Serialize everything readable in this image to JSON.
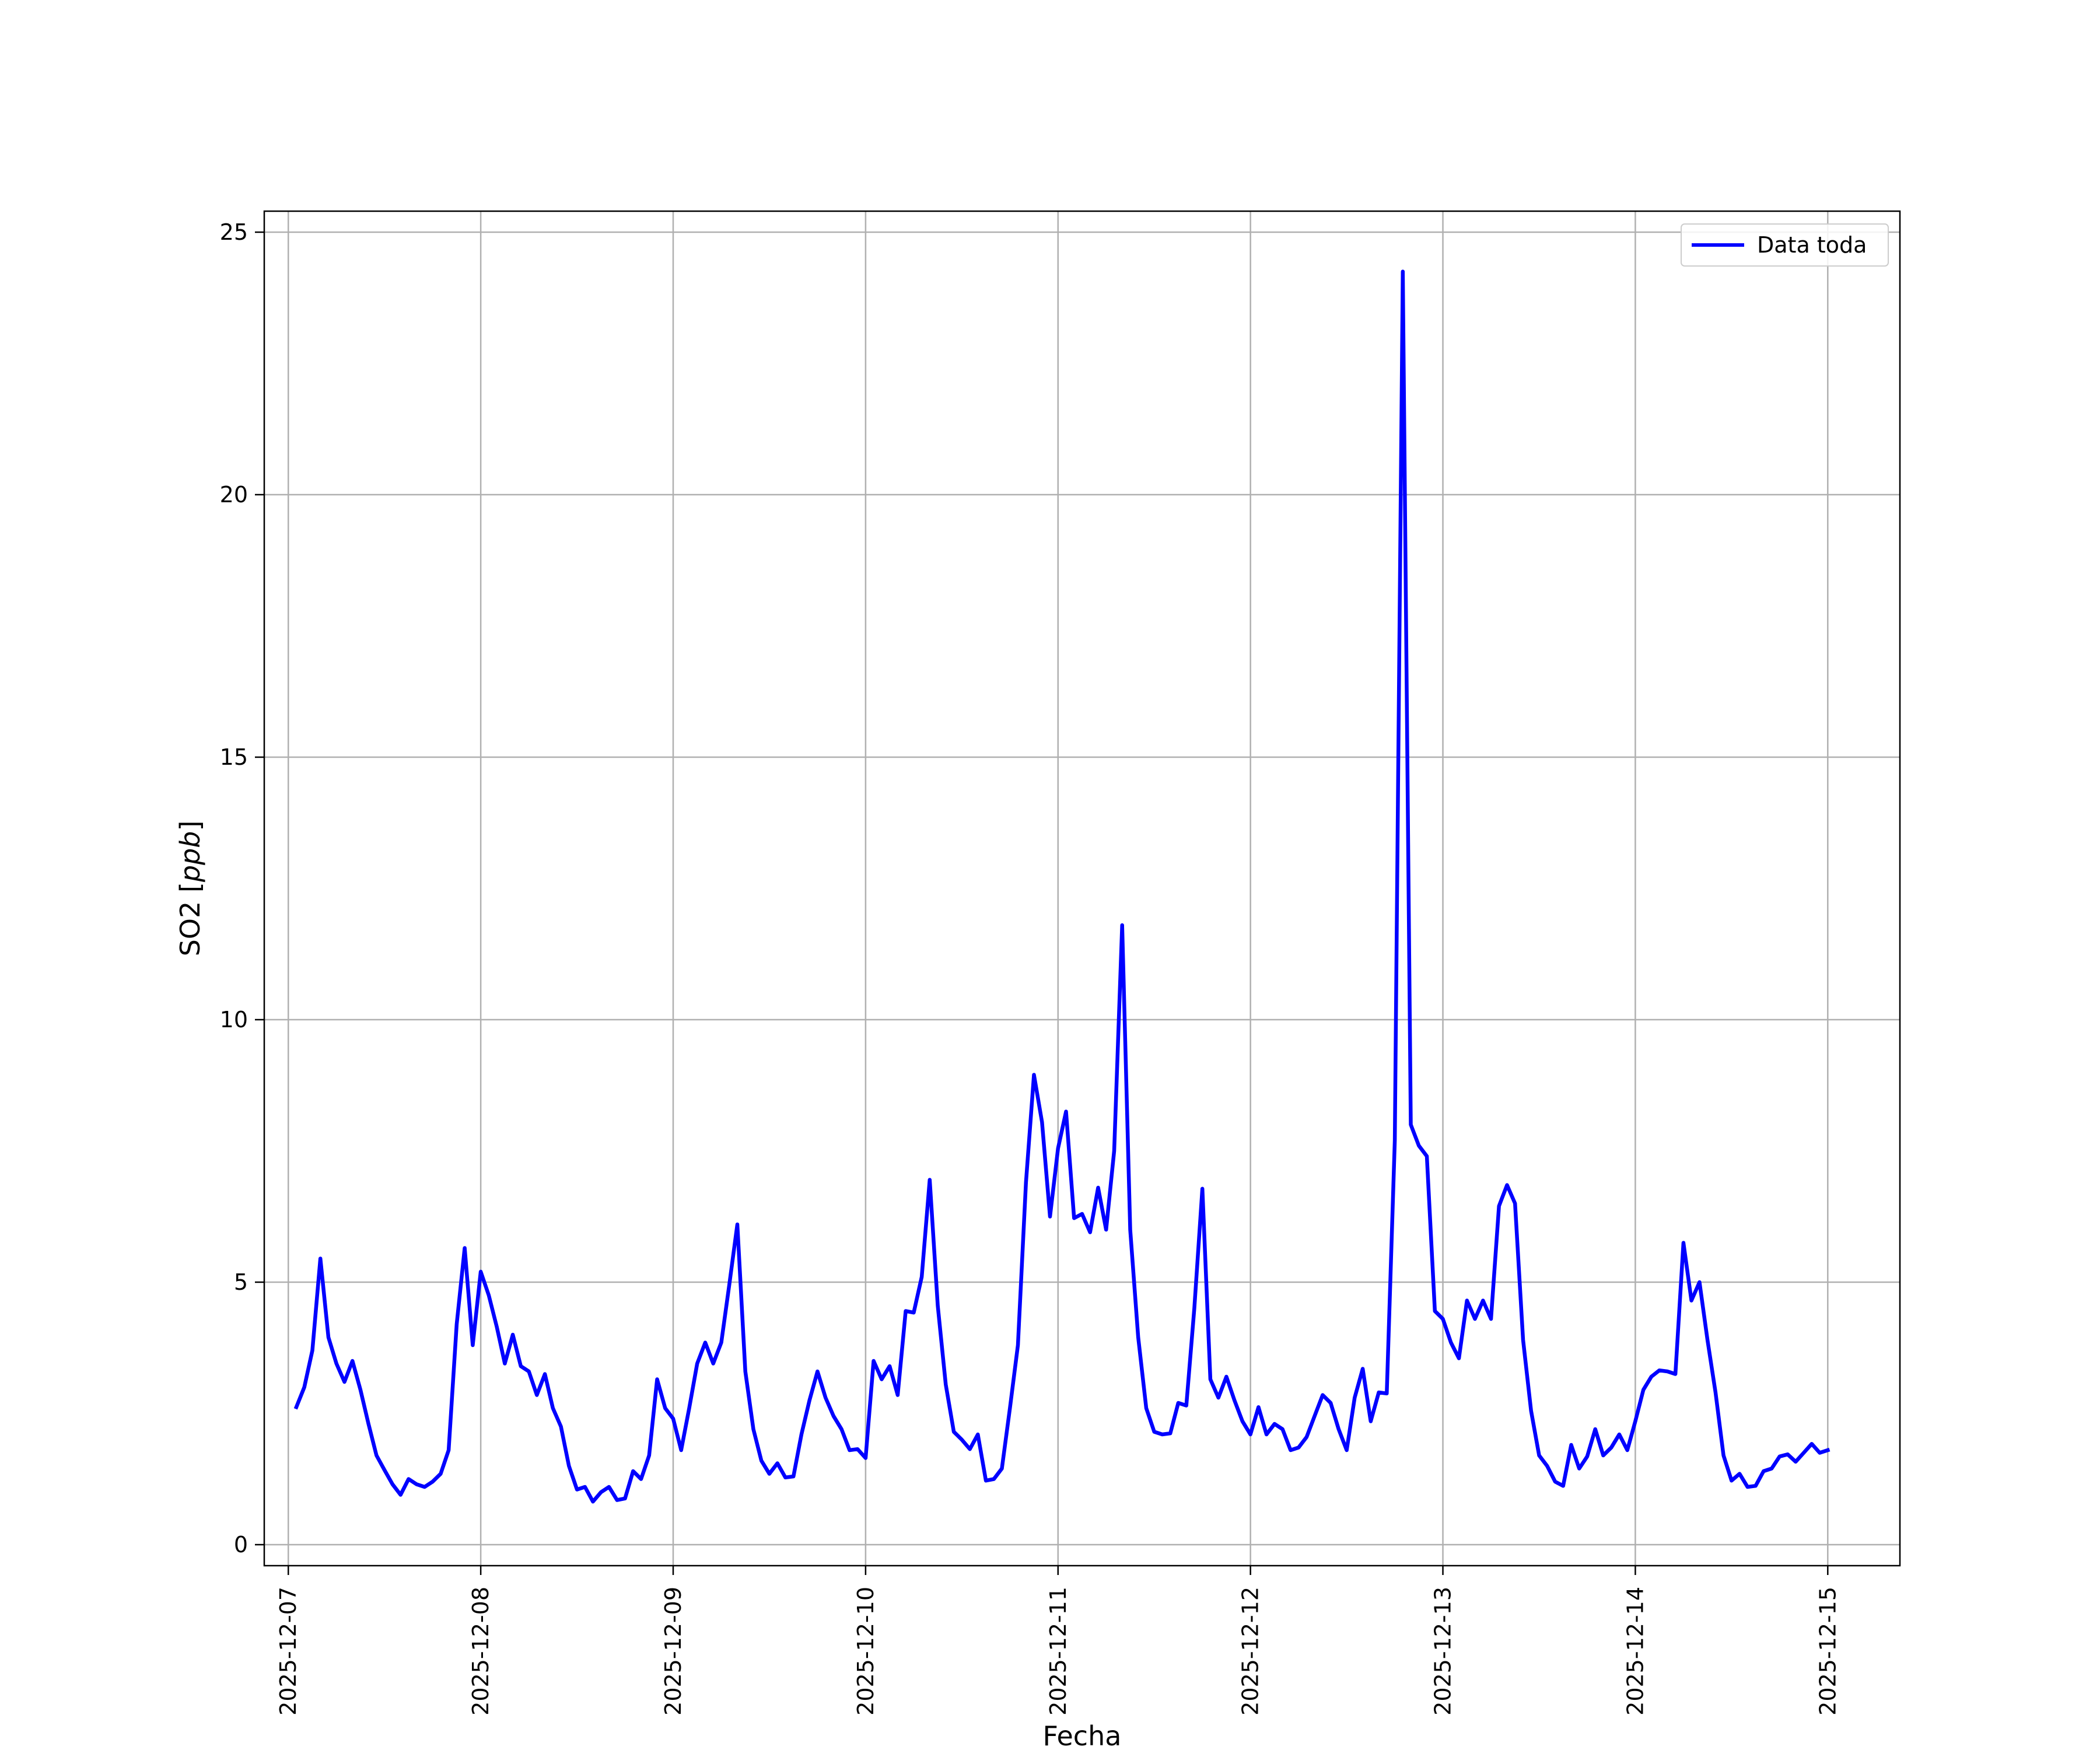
{
  "chart_data": {
    "type": "line",
    "title": "",
    "xlabel": "Fecha",
    "ylabel": "SO2 [ppb]",
    "ylabel_parts": {
      "prefix": "SO2 [",
      "italic": "ppb",
      "suffix": "]"
    },
    "grid": true,
    "legend_position": "top-right",
    "x_type": "date",
    "x_ticks": [
      "2025-12-07",
      "2025-12-08",
      "2025-12-09",
      "2025-12-10",
      "2025-12-11",
      "2025-12-12",
      "2025-12-13",
      "2025-12-14",
      "2025-12-15"
    ],
    "xlim": [
      "2025-12-06 21:00",
      "2025-12-15 09:00"
    ],
    "y_ticks": [
      0,
      5,
      10,
      15,
      20,
      25
    ],
    "ylim": [
      -0.4,
      25.4
    ],
    "series": [
      {
        "name": "Data toda",
        "color": "#0000ff",
        "points": [
          [
            "2025-12-07 01:00",
            2.62
          ],
          [
            "2025-12-07 02:00",
            3.0
          ],
          [
            "2025-12-07 03:00",
            3.7
          ],
          [
            "2025-12-07 04:00",
            5.45
          ],
          [
            "2025-12-07 05:00",
            3.95
          ],
          [
            "2025-12-07 06:00",
            3.45
          ],
          [
            "2025-12-07 07:00",
            3.1
          ],
          [
            "2025-12-07 08:00",
            3.5
          ],
          [
            "2025-12-07 09:00",
            2.95
          ],
          [
            "2025-12-07 10:00",
            2.3
          ],
          [
            "2025-12-07 11:00",
            1.7
          ],
          [
            "2025-12-07 12:00",
            1.42
          ],
          [
            "2025-12-07 13:00",
            1.15
          ],
          [
            "2025-12-07 14:00",
            0.95
          ],
          [
            "2025-12-07 15:00",
            1.25
          ],
          [
            "2025-12-07 16:00",
            1.15
          ],
          [
            "2025-12-07 17:00",
            1.1
          ],
          [
            "2025-12-07 18:00",
            1.2
          ],
          [
            "2025-12-07 19:00",
            1.35
          ],
          [
            "2025-12-07 20:00",
            1.8
          ],
          [
            "2025-12-07 21:00",
            4.2
          ],
          [
            "2025-12-07 22:00",
            5.65
          ],
          [
            "2025-12-07 23:00",
            3.8
          ],
          [
            "2025-12-08 00:00",
            5.2
          ],
          [
            "2025-12-08 01:00",
            4.75
          ],
          [
            "2025-12-08 02:00",
            4.15
          ],
          [
            "2025-12-08 03:00",
            3.45
          ],
          [
            "2025-12-08 04:00",
            4.0
          ],
          [
            "2025-12-08 05:00",
            3.4
          ],
          [
            "2025-12-08 06:00",
            3.3
          ],
          [
            "2025-12-08 07:00",
            2.85
          ],
          [
            "2025-12-08 08:00",
            3.25
          ],
          [
            "2025-12-08 09:00",
            2.6
          ],
          [
            "2025-12-08 10:00",
            2.25
          ],
          [
            "2025-12-08 11:00",
            1.5
          ],
          [
            "2025-12-08 12:00",
            1.05
          ],
          [
            "2025-12-08 13:00",
            1.1
          ],
          [
            "2025-12-08 14:00",
            0.82
          ],
          [
            "2025-12-08 15:00",
            1.0
          ],
          [
            "2025-12-08 16:00",
            1.1
          ],
          [
            "2025-12-08 17:00",
            0.85
          ],
          [
            "2025-12-08 18:00",
            0.88
          ],
          [
            "2025-12-08 19:00",
            1.4
          ],
          [
            "2025-12-08 20:00",
            1.25
          ],
          [
            "2025-12-08 21:00",
            1.7
          ],
          [
            "2025-12-08 22:00",
            3.15
          ],
          [
            "2025-12-08 23:00",
            2.6
          ],
          [
            "2025-12-09 00:00",
            2.4
          ],
          [
            "2025-12-09 01:00",
            1.8
          ],
          [
            "2025-12-09 02:00",
            2.6
          ],
          [
            "2025-12-09 03:00",
            3.45
          ],
          [
            "2025-12-09 04:00",
            3.85
          ],
          [
            "2025-12-09 05:00",
            3.45
          ],
          [
            "2025-12-09 06:00",
            3.85
          ],
          [
            "2025-12-09 07:00",
            4.95
          ],
          [
            "2025-12-09 08:00",
            6.1
          ],
          [
            "2025-12-09 09:00",
            3.3
          ],
          [
            "2025-12-09 10:00",
            2.2
          ],
          [
            "2025-12-09 11:00",
            1.6
          ],
          [
            "2025-12-09 12:00",
            1.35
          ],
          [
            "2025-12-09 13:00",
            1.55
          ],
          [
            "2025-12-09 14:00",
            1.28
          ],
          [
            "2025-12-09 15:00",
            1.3
          ],
          [
            "2025-12-09 16:00",
            2.1
          ],
          [
            "2025-12-09 17:00",
            2.75
          ],
          [
            "2025-12-09 18:00",
            3.3
          ],
          [
            "2025-12-09 19:00",
            2.8
          ],
          [
            "2025-12-09 20:00",
            2.45
          ],
          [
            "2025-12-09 21:00",
            2.2
          ],
          [
            "2025-12-09 22:00",
            1.8
          ],
          [
            "2025-12-09 23:00",
            1.82
          ],
          [
            "2025-12-10 00:00",
            1.65
          ],
          [
            "2025-12-10 01:00",
            3.5
          ],
          [
            "2025-12-10 02:00",
            3.15
          ],
          [
            "2025-12-10 03:00",
            3.4
          ],
          [
            "2025-12-10 04:00",
            2.85
          ],
          [
            "2025-12-10 05:00",
            4.45
          ],
          [
            "2025-12-10 06:00",
            4.42
          ],
          [
            "2025-12-10 07:00",
            5.1
          ],
          [
            "2025-12-10 08:00",
            6.95
          ],
          [
            "2025-12-10 09:00",
            4.55
          ],
          [
            "2025-12-10 10:00",
            3.05
          ],
          [
            "2025-12-10 11:00",
            2.15
          ],
          [
            "2025-12-10 12:00",
            2.0
          ],
          [
            "2025-12-10 13:00",
            1.82
          ],
          [
            "2025-12-10 14:00",
            2.1
          ],
          [
            "2025-12-10 15:00",
            1.22
          ],
          [
            "2025-12-10 16:00",
            1.25
          ],
          [
            "2025-12-10 17:00",
            1.45
          ],
          [
            "2025-12-10 18:00",
            2.6
          ],
          [
            "2025-12-10 19:00",
            3.8
          ],
          [
            "2025-12-10 20:00",
            6.9
          ],
          [
            "2025-12-10 21:00",
            8.95
          ],
          [
            "2025-12-10 22:00",
            8.05
          ],
          [
            "2025-12-10 23:00",
            6.25
          ],
          [
            "2025-12-11 00:00",
            7.55
          ],
          [
            "2025-12-11 01:00",
            8.25
          ],
          [
            "2025-12-11 02:00",
            6.22
          ],
          [
            "2025-12-11 03:00",
            6.3
          ],
          [
            "2025-12-11 04:00",
            5.95
          ],
          [
            "2025-12-11 05:00",
            6.8
          ],
          [
            "2025-12-11 06:00",
            6.0
          ],
          [
            "2025-12-11 07:00",
            7.5
          ],
          [
            "2025-12-11 08:00",
            11.8
          ],
          [
            "2025-12-11 09:00",
            6.0
          ],
          [
            "2025-12-11 10:00",
            3.95
          ],
          [
            "2025-12-11 11:00",
            2.6
          ],
          [
            "2025-12-11 12:00",
            2.15
          ],
          [
            "2025-12-11 13:00",
            2.1
          ],
          [
            "2025-12-11 14:00",
            2.12
          ],
          [
            "2025-12-11 15:00",
            2.7
          ],
          [
            "2025-12-11 16:00",
            2.65
          ],
          [
            "2025-12-11 17:00",
            4.5
          ],
          [
            "2025-12-11 18:00",
            6.78
          ],
          [
            "2025-12-11 19:00",
            3.15
          ],
          [
            "2025-12-11 20:00",
            2.8
          ],
          [
            "2025-12-11 21:00",
            3.2
          ],
          [
            "2025-12-11 22:00",
            2.75
          ],
          [
            "2025-12-11 23:00",
            2.35
          ],
          [
            "2025-12-12 00:00",
            2.1
          ],
          [
            "2025-12-12 01:00",
            2.62
          ],
          [
            "2025-12-12 02:00",
            2.1
          ],
          [
            "2025-12-12 03:00",
            2.3
          ],
          [
            "2025-12-12 04:00",
            2.2
          ],
          [
            "2025-12-12 05:00",
            1.8
          ],
          [
            "2025-12-12 06:00",
            1.85
          ],
          [
            "2025-12-12 07:00",
            2.05
          ],
          [
            "2025-12-12 08:00",
            2.45
          ],
          [
            "2025-12-12 09:00",
            2.85
          ],
          [
            "2025-12-12 10:00",
            2.7
          ],
          [
            "2025-12-12 11:00",
            2.2
          ],
          [
            "2025-12-12 12:00",
            1.8
          ],
          [
            "2025-12-12 13:00",
            2.8
          ],
          [
            "2025-12-12 14:00",
            3.35
          ],
          [
            "2025-12-12 15:00",
            2.35
          ],
          [
            "2025-12-12 16:00",
            2.9
          ],
          [
            "2025-12-12 17:00",
            2.88
          ],
          [
            "2025-12-12 18:00",
            7.7
          ],
          [
            "2025-12-12 19:00",
            24.25
          ],
          [
            "2025-12-12 20:00",
            8.0
          ],
          [
            "2025-12-12 21:00",
            7.6
          ],
          [
            "2025-12-12 22:00",
            7.4
          ],
          [
            "2025-12-12 23:00",
            4.45
          ],
          [
            "2025-12-13 00:00",
            4.3
          ],
          [
            "2025-12-13 01:00",
            3.85
          ],
          [
            "2025-12-13 02:00",
            3.55
          ],
          [
            "2025-12-13 03:00",
            4.65
          ],
          [
            "2025-12-13 04:00",
            4.3
          ],
          [
            "2025-12-13 05:00",
            4.65
          ],
          [
            "2025-12-13 06:00",
            4.3
          ],
          [
            "2025-12-13 07:00",
            6.45
          ],
          [
            "2025-12-13 08:00",
            6.85
          ],
          [
            "2025-12-13 09:00",
            6.5
          ],
          [
            "2025-12-13 10:00",
            3.9
          ],
          [
            "2025-12-13 11:00",
            2.55
          ],
          [
            "2025-12-13 12:00",
            1.7
          ],
          [
            "2025-12-13 13:00",
            1.5
          ],
          [
            "2025-12-13 14:00",
            1.2
          ],
          [
            "2025-12-13 15:00",
            1.12
          ],
          [
            "2025-12-13 16:00",
            1.9
          ],
          [
            "2025-12-13 17:00",
            1.45
          ],
          [
            "2025-12-13 18:00",
            1.68
          ],
          [
            "2025-12-13 19:00",
            2.2
          ],
          [
            "2025-12-13 20:00",
            1.7
          ],
          [
            "2025-12-13 21:00",
            1.85
          ],
          [
            "2025-12-13 22:00",
            2.1
          ],
          [
            "2025-12-13 23:00",
            1.8
          ],
          [
            "2025-12-14 00:00",
            2.35
          ],
          [
            "2025-12-14 01:00",
            2.95
          ],
          [
            "2025-12-14 02:00",
            3.2
          ],
          [
            "2025-12-14 03:00",
            3.32
          ],
          [
            "2025-12-14 04:00",
            3.3
          ],
          [
            "2025-12-14 05:00",
            3.25
          ],
          [
            "2025-12-14 06:00",
            5.75
          ],
          [
            "2025-12-14 07:00",
            4.65
          ],
          [
            "2025-12-14 08:00",
            5.0
          ],
          [
            "2025-12-14 09:00",
            3.9
          ],
          [
            "2025-12-14 10:00",
            2.9
          ],
          [
            "2025-12-14 11:00",
            1.7
          ],
          [
            "2025-12-14 12:00",
            1.22
          ],
          [
            "2025-12-14 13:00",
            1.35
          ],
          [
            "2025-12-14 14:00",
            1.1
          ],
          [
            "2025-12-14 15:00",
            1.12
          ],
          [
            "2025-12-14 16:00",
            1.4
          ],
          [
            "2025-12-14 17:00",
            1.45
          ],
          [
            "2025-12-14 18:00",
            1.68
          ],
          [
            "2025-12-14 19:00",
            1.72
          ],
          [
            "2025-12-14 20:00",
            1.58
          ],
          [
            "2025-12-14 21:00",
            1.75
          ],
          [
            "2025-12-14 22:00",
            1.92
          ],
          [
            "2025-12-14 23:00",
            1.75
          ],
          [
            "2025-12-15 00:00",
            1.8
          ]
        ]
      }
    ]
  }
}
